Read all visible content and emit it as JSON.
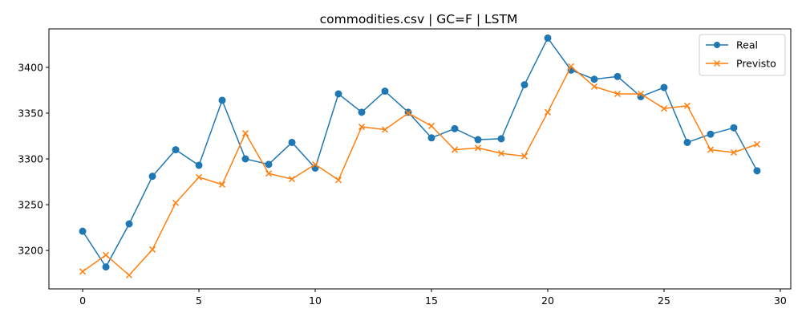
{
  "chart_data": {
    "type": "line",
    "title": "commodities.csv | GC=F | LSTM",
    "xlabel": "",
    "ylabel": "",
    "xlim": [
      -1.45,
      30.45
    ],
    "ylim": [
      3158,
      3442
    ],
    "xticks": [
      0,
      5,
      10,
      15,
      20,
      25,
      30
    ],
    "yticks": [
      3200,
      3250,
      3300,
      3350,
      3400
    ],
    "grid": false,
    "legend_position": "top-right",
    "x": [
      0,
      1,
      2,
      3,
      4,
      5,
      6,
      7,
      8,
      9,
      10,
      11,
      12,
      13,
      14,
      15,
      16,
      17,
      18,
      19,
      20,
      21,
      22,
      23,
      24,
      25,
      26,
      27,
      28,
      29
    ],
    "series": [
      {
        "name": "Real",
        "color": "#1f77b4",
        "marker": "circle",
        "values": [
          3221,
          3182,
          3229,
          3281,
          3310,
          3293,
          3364,
          3300,
          3294,
          3318,
          3290,
          3371,
          3351,
          3374,
          3351,
          3323,
          3333,
          3321,
          3322,
          3381,
          3432,
          3397,
          3387,
          3390,
          3368,
          3378,
          3318,
          3327,
          3334,
          3287
        ]
      },
      {
        "name": "Previsto",
        "color": "#ff7f0e",
        "marker": "x",
        "values": [
          3177,
          3195,
          3173,
          3201,
          3252,
          3280,
          3272,
          3328,
          3284,
          3278,
          3294,
          3277,
          3335,
          3332,
          3350,
          3336,
          3310,
          3312,
          3306,
          3303,
          3351,
          3401,
          3379,
          3371,
          3371,
          3355,
          3358,
          3310,
          3307,
          3316
        ]
      }
    ]
  }
}
